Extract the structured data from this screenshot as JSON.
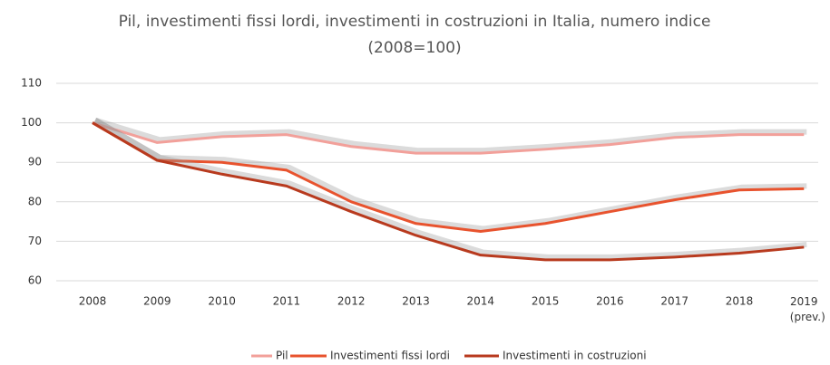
{
  "chart_data": {
    "type": "line",
    "title": "Pil, investimenti fissi lordi, investimenti in costruzioni in Italia, numero indice (2008=100)",
    "categories": [
      "2008",
      "2009",
      "2010",
      "2011",
      "2012",
      "2013",
      "2014",
      "2015",
      "2016",
      "2017",
      "2018",
      "2019 (prev.)"
    ],
    "series": [
      {
        "name": "Pil",
        "color": "#f2a09a",
        "values": [
          100,
          95,
          96.5,
          97,
          94,
          92.3,
          92.3,
          93.3,
          94.5,
          96.3,
          97,
          97
        ]
      },
      {
        "name": "Investimenti fissi lordi",
        "color": "#e8532e",
        "values": [
          100,
          90.5,
          90,
          88,
          80,
          74.5,
          72.5,
          74.5,
          77.5,
          80.5,
          83,
          83.3
        ]
      },
      {
        "name": "Investimenti in costruzioni",
        "color": "#b83a1e",
        "values": [
          100,
          90.5,
          87,
          84,
          77.5,
          71.5,
          66.5,
          65.3,
          65.3,
          66,
          67,
          68.5
        ]
      }
    ],
    "ylim": [
      60,
      110
    ],
    "yticks": [
      60,
      70,
      80,
      90,
      100,
      110
    ],
    "grid": true,
    "legend": "bottom"
  }
}
